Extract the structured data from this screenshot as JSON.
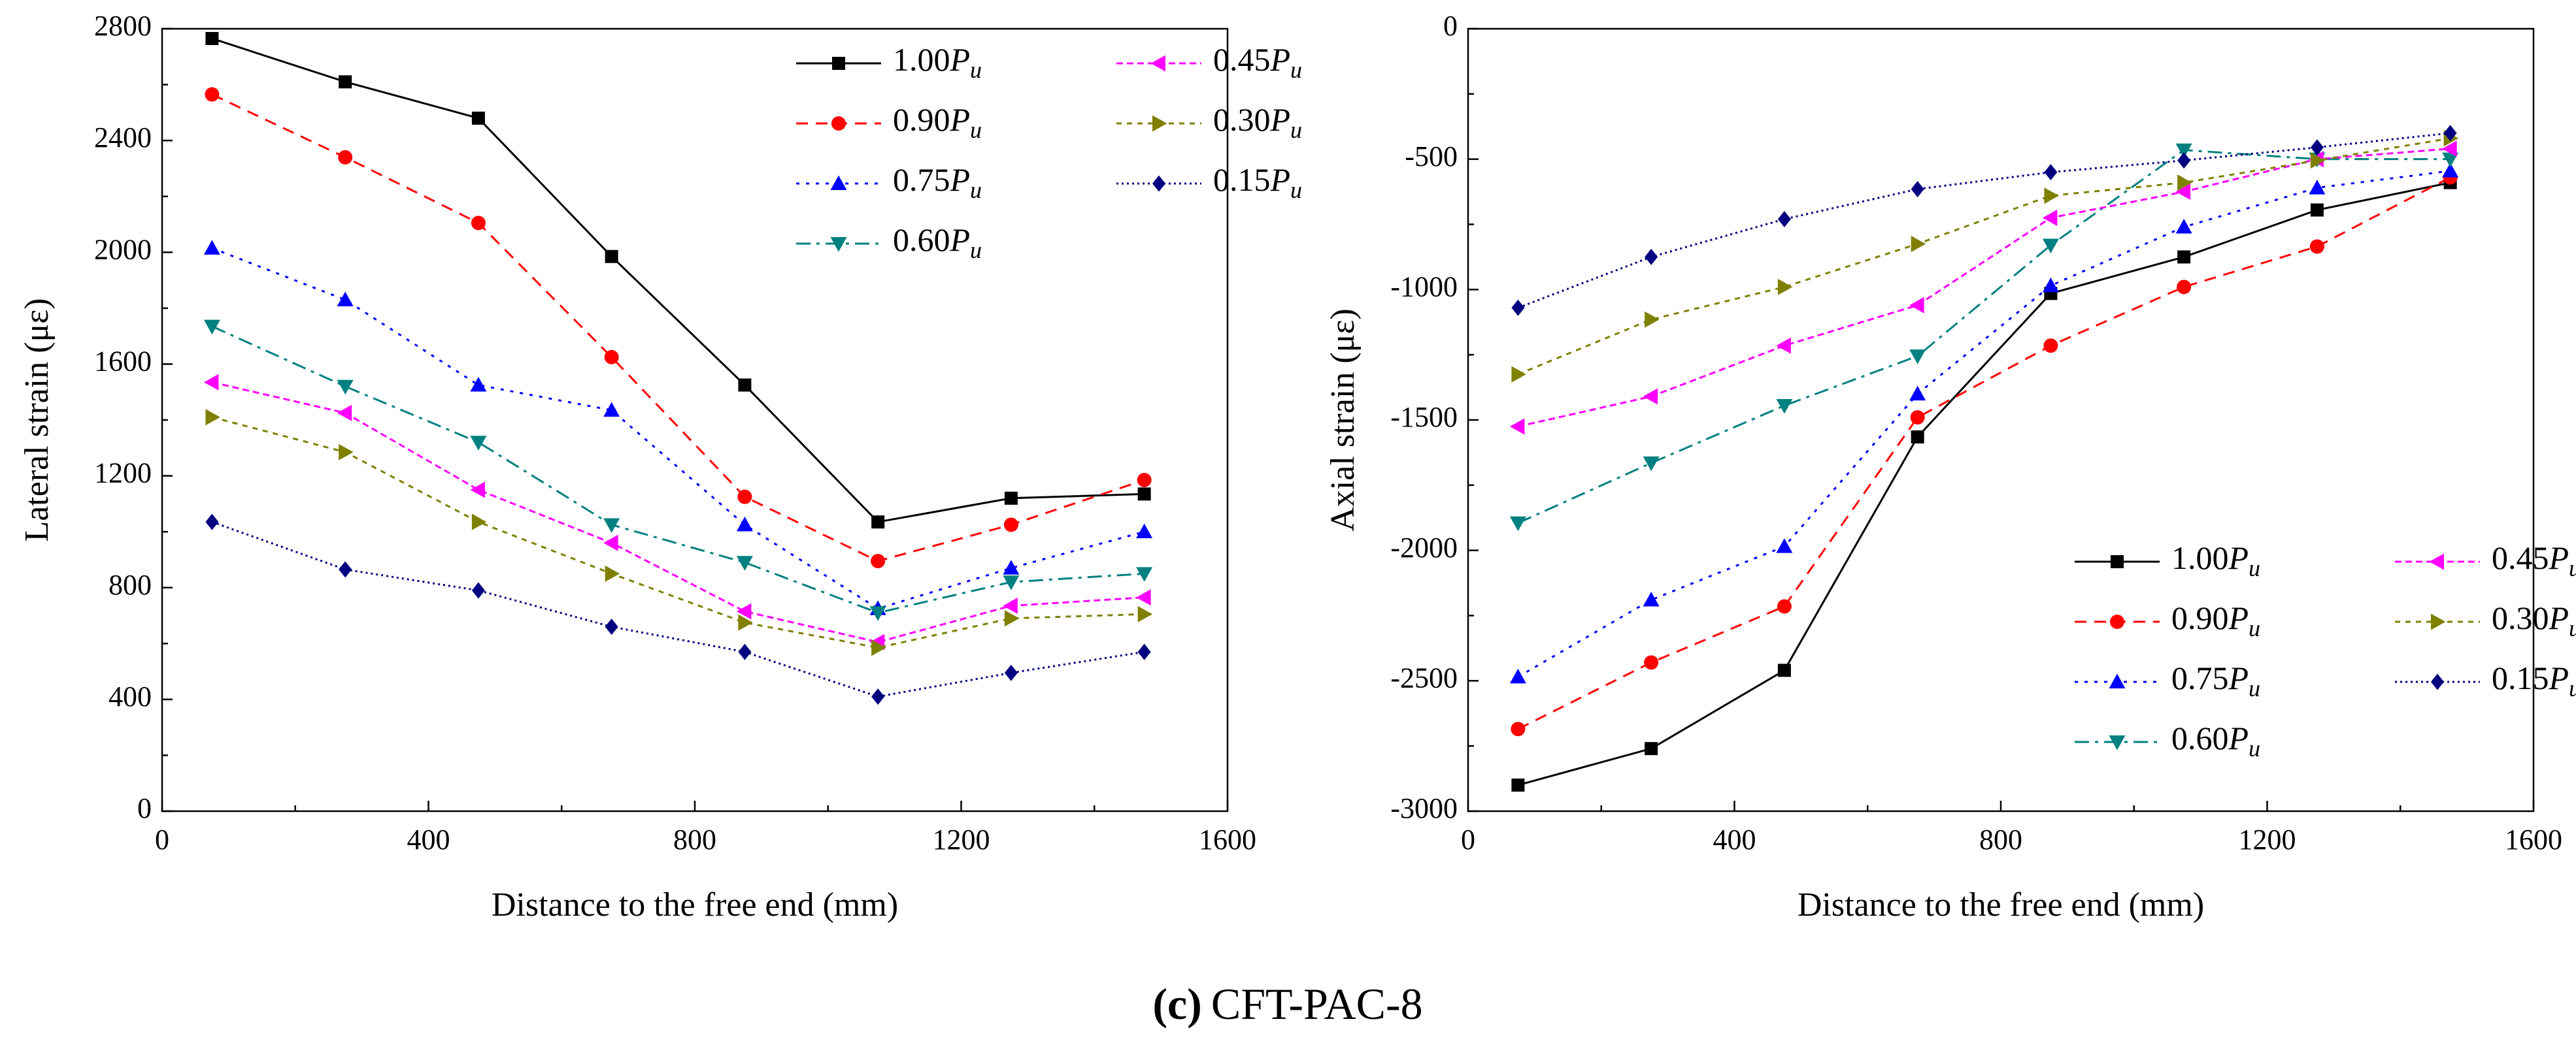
{
  "figure": {
    "caption_label": "(c)",
    "caption_text": "CFT-PAC-8"
  },
  "chart_data": [
    {
      "type": "line",
      "title": "",
      "xlabel": "Distance to the free end (mm)",
      "ylabel": "Lateral strain (με)",
      "xlim": [
        0,
        1600
      ],
      "ylim": [
        0,
        2800
      ],
      "xticks": [
        0,
        400,
        800,
        1200,
        1600
      ],
      "yticks": [
        0,
        400,
        800,
        1200,
        1600,
        2000,
        2400,
        2800
      ],
      "legend_position": "top-right",
      "grid": false,
      "x": [
        75,
        275,
        475,
        675,
        875,
        1075,
        1275,
        1475
      ],
      "series": [
        {
          "name": "1.00",
          "values": [
            2765,
            2610,
            2480,
            1985,
            1525,
            1035,
            1120,
            1135
          ]
        },
        {
          "name": "0.90",
          "values": [
            2565,
            2340,
            2105,
            1625,
            1125,
            895,
            1025,
            1185
          ]
        },
        {
          "name": "0.75",
          "values": [
            2015,
            1830,
            1525,
            1435,
            1025,
            725,
            870,
            1000
          ]
        },
        {
          "name": "0.60",
          "values": [
            1735,
            1520,
            1320,
            1025,
            890,
            710,
            820,
            850
          ]
        },
        {
          "name": "0.45",
          "values": [
            1535,
            1425,
            1150,
            960,
            715,
            605,
            735,
            765
          ]
        },
        {
          "name": "0.30",
          "values": [
            1410,
            1285,
            1035,
            850,
            675,
            585,
            690,
            705
          ]
        },
        {
          "name": "0.15",
          "values": [
            1035,
            865,
            790,
            660,
            570,
            410,
            495,
            570
          ]
        }
      ]
    },
    {
      "type": "line",
      "title": "",
      "xlabel": "Distance to the free end (mm)",
      "ylabel": "Axial strain (με)",
      "xlim": [
        0,
        1600
      ],
      "ylim": [
        -3000,
        0
      ],
      "xticks": [
        0,
        400,
        800,
        1200,
        1600
      ],
      "yticks": [
        -3000,
        -2500,
        -2000,
        -1500,
        -1000,
        -500,
        0
      ],
      "legend_position": "bottom-right",
      "grid": false,
      "x": [
        75,
        275,
        475,
        675,
        875,
        1075,
        1275,
        1475
      ],
      "series": [
        {
          "name": "1.00",
          "values": [
            -2900,
            -2760,
            -2460,
            -1565,
            -1015,
            -875,
            -695,
            -590
          ]
        },
        {
          "name": "0.90",
          "values": [
            -2685,
            -2430,
            -2215,
            -1490,
            -1215,
            -990,
            -835,
            -570
          ]
        },
        {
          "name": "0.75",
          "values": [
            -2485,
            -2190,
            -1985,
            -1400,
            -985,
            -760,
            -610,
            -545
          ]
        },
        {
          "name": "0.60",
          "values": [
            -1895,
            -1665,
            -1445,
            -1255,
            -830,
            -465,
            -500,
            -500
          ]
        },
        {
          "name": "0.45",
          "values": [
            -1525,
            -1410,
            -1215,
            -1060,
            -725,
            -625,
            -500,
            -460
          ]
        },
        {
          "name": "0.30",
          "values": [
            -1325,
            -1115,
            -990,
            -825,
            -640,
            -590,
            -505,
            -420
          ]
        },
        {
          "name": "0.15",
          "values": [
            -1070,
            -875,
            -730,
            -615,
            -550,
            -505,
            -455,
            -400
          ]
        }
      ]
    }
  ],
  "legend_load_symbol": "P",
  "legend_load_subscript": "u",
  "series_styles": [
    {
      "color": "#000000",
      "dash": "",
      "marker": "square"
    },
    {
      "color": "#ff0000",
      "dash": "18,12",
      "marker": "circle"
    },
    {
      "color": "#0000ff",
      "dash": "5,10",
      "marker": "triangle-up"
    },
    {
      "color": "#008080",
      "dash": "22,9,5,9",
      "marker": "triangle-down"
    },
    {
      "color": "#ff00ff",
      "dash": "10,6",
      "marker": "triangle-left"
    },
    {
      "color": "#808000",
      "dash": "8,8",
      "marker": "triangle-right"
    },
    {
      "color": "#000080",
      "dash": "3,5",
      "marker": "diamond"
    }
  ]
}
